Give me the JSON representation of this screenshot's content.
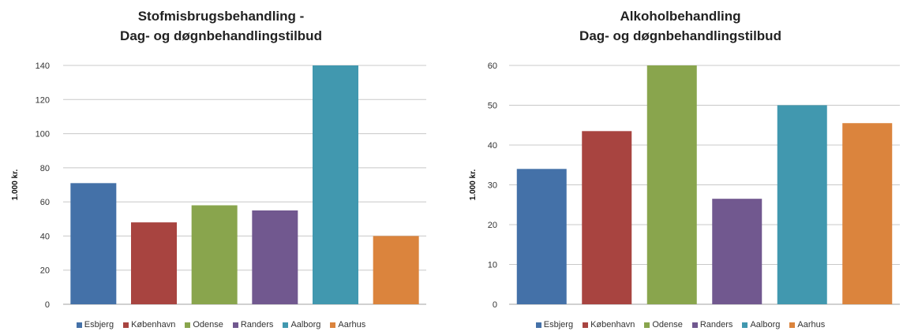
{
  "chart_data": [
    {
      "type": "bar",
      "title_lines": [
        "Stofmisbrugsbehandling -",
        "Dag- og døgnbehandlingstilbud"
      ],
      "ylabel": "1.000 kr.",
      "ylim": [
        0,
        140
      ],
      "yticks": [
        "0",
        "20",
        "40",
        "60",
        "80",
        "100",
        "120",
        "140"
      ],
      "categories": [
        "Esbjerg",
        "København",
        "Odense",
        "Randers",
        "Aalborg",
        "Aarhus"
      ],
      "values": [
        71,
        48,
        58,
        55,
        140,
        40
      ],
      "grid": true,
      "legend_position": "bottom"
    },
    {
      "type": "bar",
      "title_lines": [
        "Alkoholbehandling",
        "Dag- og døgnbehandlingstilbud"
      ],
      "ylabel": "1.000 kr.",
      "ylim": [
        0,
        60
      ],
      "yticks": [
        "0",
        "10",
        "20",
        "30",
        "40",
        "50",
        "60"
      ],
      "categories": [
        "Esbjerg",
        "København",
        "Odense",
        "Randers",
        "Aalborg",
        "Aarhus"
      ],
      "values": [
        34,
        43.5,
        60,
        26.5,
        50,
        45.5
      ],
      "grid": true,
      "legend_position": "bottom"
    }
  ],
  "colors": {
    "Esbjerg": "#4471a8",
    "København": "#a84440",
    "Odense": "#89a54d",
    "Randers": "#71588f",
    "Aalborg": "#4198af",
    "Aarhus": "#db843d",
    "grid": "#c8c8c8",
    "axis": "#a0a0a0"
  }
}
